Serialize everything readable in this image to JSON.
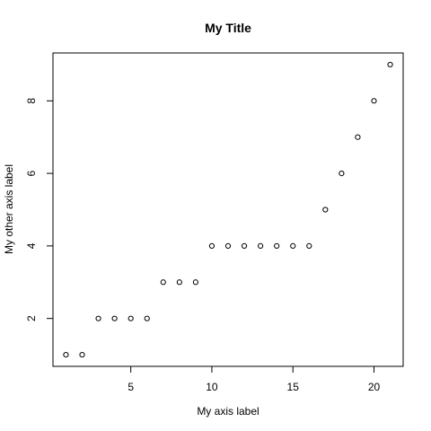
{
  "chart_data": {
    "type": "scatter",
    "title": "My Title",
    "xlabel": "My axis label",
    "ylabel": "My other axis label",
    "x": [
      1,
      2,
      3,
      4,
      5,
      6,
      7,
      8,
      9,
      10,
      11,
      12,
      13,
      14,
      15,
      16,
      17,
      18,
      19,
      20,
      21
    ],
    "y": [
      1,
      1,
      2,
      2,
      2,
      2,
      3,
      3,
      3,
      4,
      4,
      4,
      4,
      4,
      4,
      4,
      5,
      6,
      7,
      8,
      9
    ],
    "xlim": [
      0.2,
      21.8
    ],
    "ylim": [
      0.68,
      9.32
    ],
    "xticks": [
      5,
      10,
      15,
      20
    ],
    "yticks": [
      2,
      4,
      6,
      8
    ],
    "grid": false,
    "marker": "open-circle"
  }
}
